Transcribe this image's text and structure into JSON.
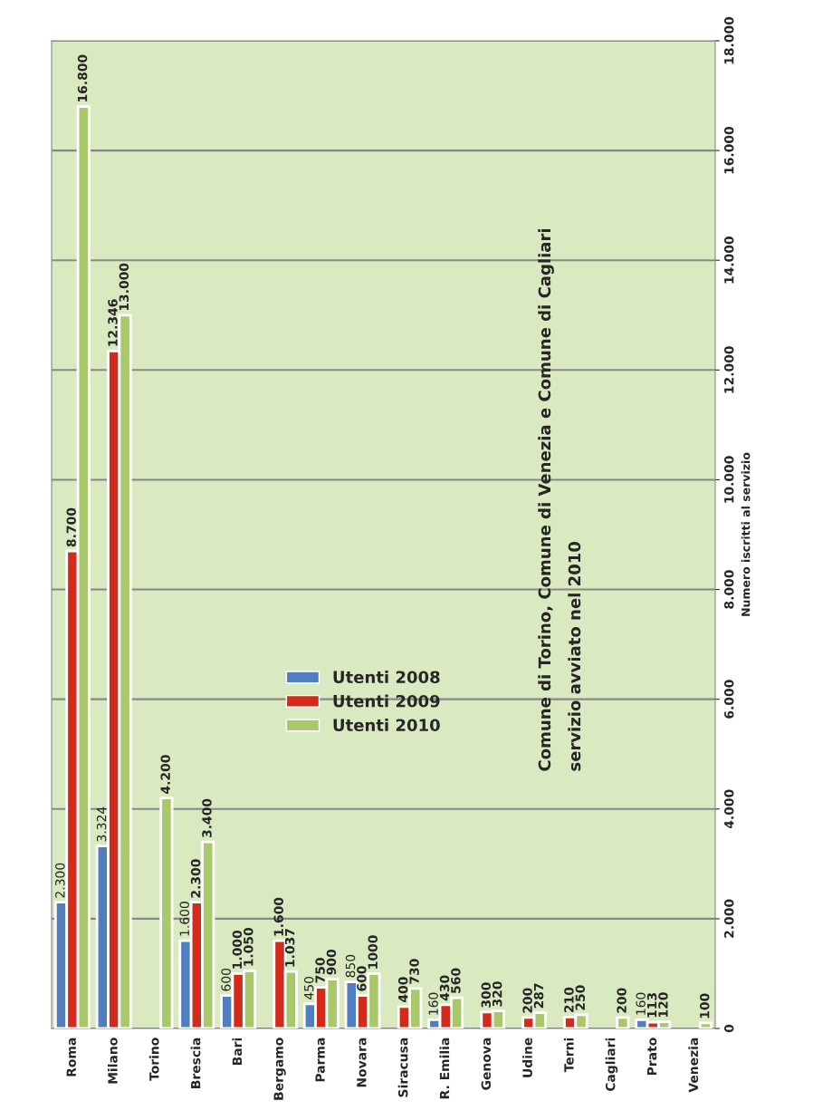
{
  "chart_data": {
    "type": "bar",
    "ylabel": "Numero iscritti al servizio",
    "categories": [
      "Roma",
      "Milano",
      "Torino",
      "Brescia",
      "Bari",
      "Bergamo",
      "Parma",
      "Novara",
      "Siracusa",
      "R. Emilia",
      "Genova",
      "Udine",
      "Terni",
      "Cagliari",
      "Prato",
      "Venezia"
    ],
    "series": [
      {
        "name": "Utenti 2008",
        "color": "#4f7fc0",
        "values": [
          2300,
          3324,
          null,
          1600,
          600,
          null,
          450,
          850,
          null,
          160,
          null,
          null,
          null,
          null,
          160,
          null
        ],
        "value_labels": [
          "2.300",
          "3.324",
          null,
          "1.600",
          "600",
          null,
          "450",
          "850",
          null,
          "160",
          null,
          null,
          null,
          null,
          "160",
          null
        ]
      },
      {
        "name": "Utenti 2009",
        "color": "#d42a1a",
        "values": [
          8700,
          12346,
          null,
          2300,
          1000,
          1600,
          750,
          600,
          400,
          430,
          300,
          200,
          210,
          null,
          113,
          null
        ],
        "value_labels": [
          "8.700",
          "12.346",
          null,
          "2.300",
          "1.000",
          "1.600",
          "750",
          "600",
          "400",
          "430",
          "300",
          "200",
          "210",
          null,
          "113",
          null
        ]
      },
      {
        "name": "Utenti 2010",
        "color": "#a9c86a",
        "values": [
          16800,
          13000,
          4200,
          3400,
          1050,
          1037,
          900,
          1000,
          730,
          560,
          320,
          287,
          250,
          200,
          120,
          100
        ],
        "value_labels": [
          "16.800",
          "13.000",
          "4.200",
          "3.400",
          "1.050",
          "1.037",
          "900",
          "1000",
          "730",
          "560",
          "320",
          "287",
          "250",
          "200",
          "120",
          "100"
        ]
      }
    ],
    "ylim": [
      0,
      18000
    ],
    "yticks": [
      0,
      {
        "value": 2000,
        "label": "2.000"
      },
      {
        "value": 4000,
        "label": "4.000"
      },
      {
        "value": 6000,
        "label": "6.000"
      },
      {
        "value": 8000,
        "label": "8.000"
      },
      {
        "value": 10000,
        "label": "10.000"
      },
      {
        "value": 12000,
        "label": "12.000"
      },
      {
        "value": 14000,
        "label": "14.000"
      },
      {
        "value": 16000,
        "label": "16.000"
      },
      {
        "value": 18000,
        "label": "18.000"
      }
    ],
    "grid": "y",
    "legend": "center",
    "annotations": [
      "Comune di Torino, Comune di Venezia e Comune di Cagliari",
      "servizio avviato nel 2010"
    ]
  }
}
